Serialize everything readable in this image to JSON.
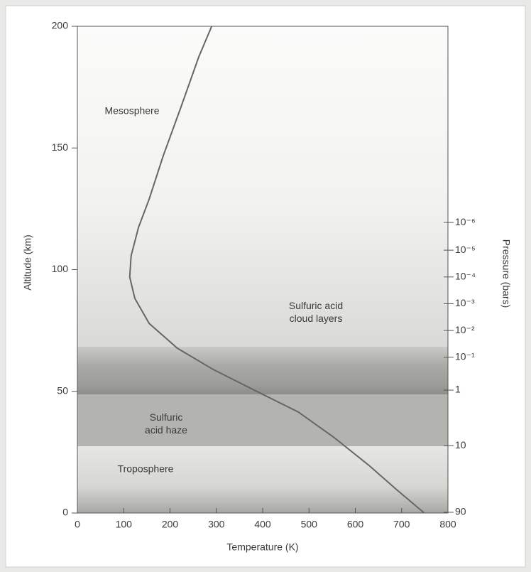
{
  "chart_data": {
    "type": "line",
    "x_label": "Temperature (K)",
    "y_label": "Altitude (km)",
    "x": [
      749,
      691,
      630,
      553,
      477,
      385,
      293,
      216,
      155,
      124,
      113,
      116,
      132,
      155,
      185,
      224,
      262,
      290
    ],
    "series": [
      {
        "color": "#666666",
        "values": [
          0,
          9.3,
          19.5,
          31.2,
          41.5,
          50.2,
          59,
          67.7,
          77.9,
          88.2,
          97,
          105.7,
          117.4,
          129,
          146.6,
          167,
          187.4,
          200
        ]
      }
    ],
    "xlim": [
      0,
      800
    ],
    "xticks": [
      0,
      100,
      200,
      300,
      400,
      500,
      600,
      700,
      800
    ],
    "ylim": [
      0,
      200
    ],
    "yticks": [
      0,
      50,
      100,
      150,
      200
    ],
    "pressure_axis": {
      "label": "Pressure (bars)",
      "ticks": [
        {
          "value": 1e-06,
          "label": "10⁻⁶",
          "altitude": 119.4
        },
        {
          "value": 1e-05,
          "label": "10⁻⁵",
          "altitude": 108
        },
        {
          "value": 0.0001,
          "label": "10⁻⁴",
          "altitude": 97
        },
        {
          "value": 0.001,
          "label": "10⁻³",
          "altitude": 86
        },
        {
          "value": 0.01,
          "label": "10⁻²",
          "altitude": 75
        },
        {
          "value": 0.1,
          "label": "10⁻¹",
          "altitude": 64
        },
        {
          "value": 1,
          "label": "1",
          "altitude": 50.5
        },
        {
          "value": 10,
          "label": "10",
          "altitude": 27.7
        },
        {
          "value": 90,
          "label": "90",
          "altitude": 0.3
        }
      ]
    },
    "annotations": [
      "Mesosphere",
      "Sulfuric acid\ncloud layers",
      "Sulfuric\nacid haze",
      "Troposphere"
    ]
  }
}
